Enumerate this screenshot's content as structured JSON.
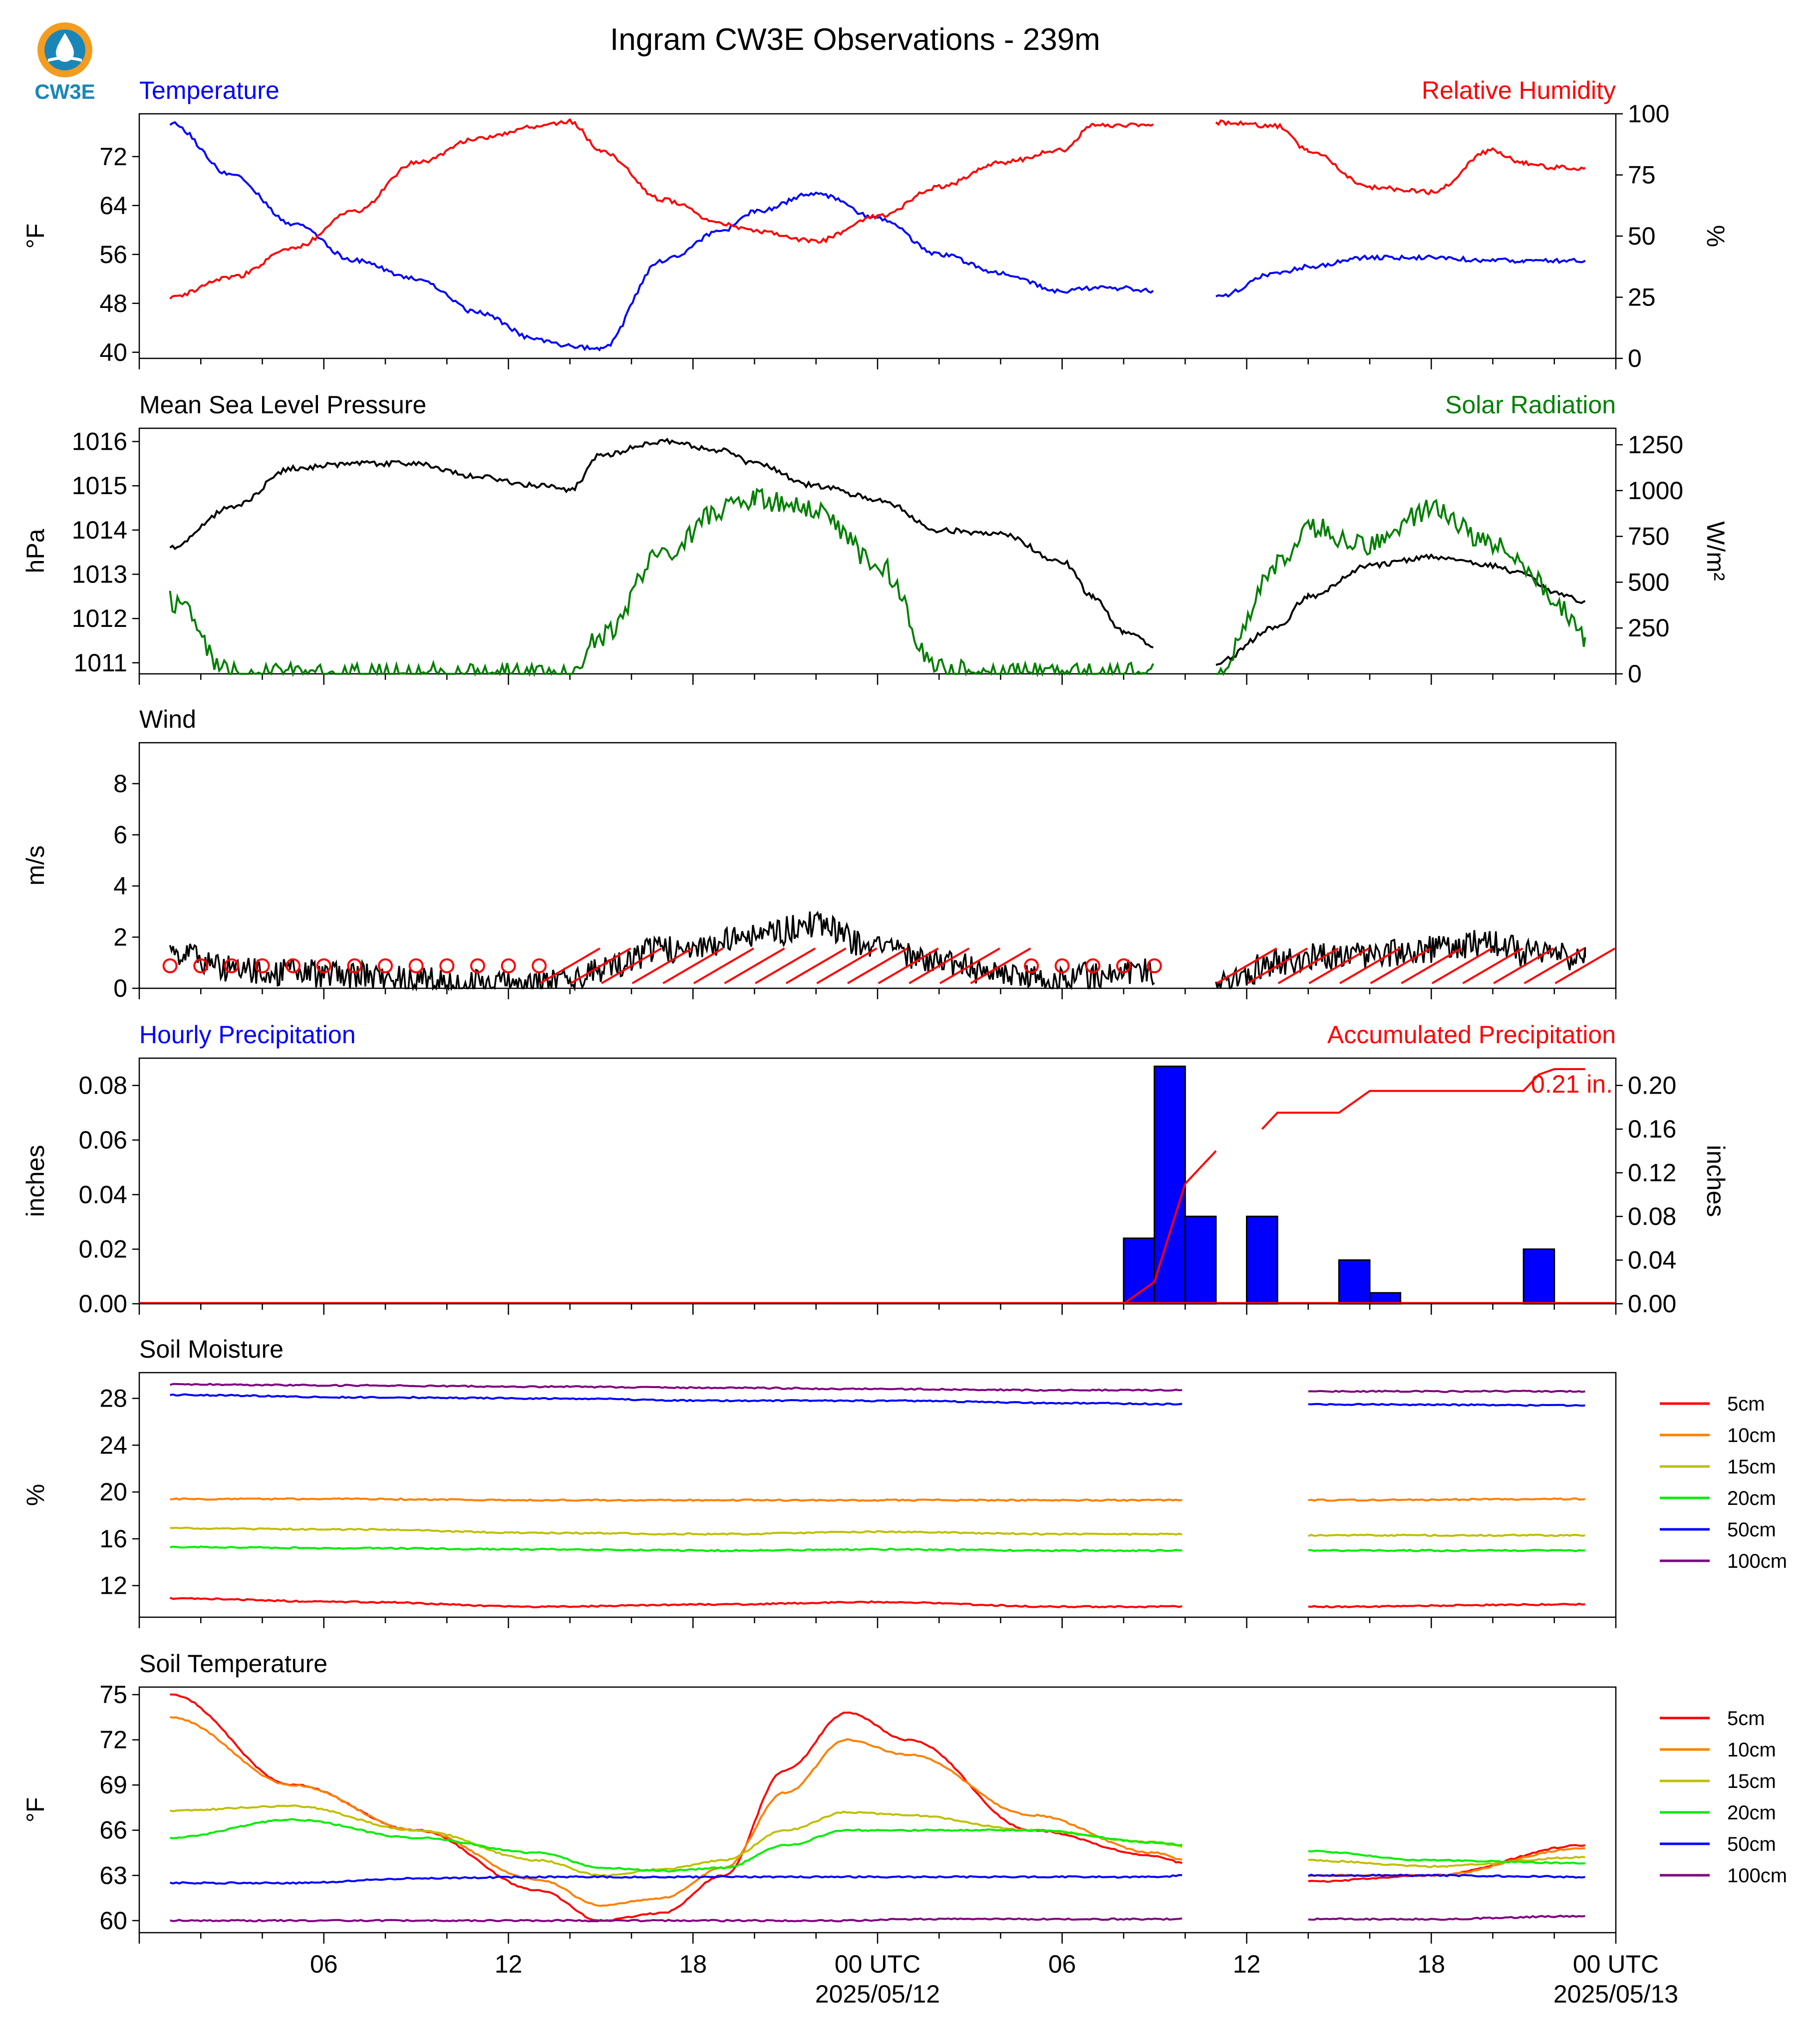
{
  "title": "Ingram CW3E Observations - 239m",
  "logo_text": "CW3E",
  "colors": {
    "temperature": "#0000ff",
    "humidity": "#ff0000",
    "pressure": "#000000",
    "solar": "#007f00",
    "wind": "#000000",
    "barb": "#ff0000",
    "precip_bar": "#0000ff",
    "accum": "#ff0000",
    "logo_ring": "#f39c1f",
    "logo_inner": "#1a86b8"
  },
  "time_axis": {
    "ticks": [
      {
        "label": "06",
        "sub": ""
      },
      {
        "label": "12",
        "sub": ""
      },
      {
        "label": "18",
        "sub": ""
      },
      {
        "label": "00 UTC",
        "sub": "2025/05/12"
      },
      {
        "label": "06",
        "sub": ""
      },
      {
        "label": "12",
        "sub": ""
      },
      {
        "label": "18",
        "sub": ""
      },
      {
        "label": "00 UTC",
        "sub": "2025/05/13"
      }
    ]
  },
  "soil_legend": [
    "5cm",
    "10cm",
    "15cm",
    "20cm",
    "50cm",
    "100cm"
  ],
  "soil_colors": [
    "#ff0000",
    "#ff7f00",
    "#bfbf00",
    "#00ee00",
    "#0000ff",
    "#800080"
  ],
  "chart_data": [
    {
      "type": "line",
      "left_label": "Temperature",
      "right_label": "Relative Humidity",
      "ylabel": "°F",
      "ylabel_right": "%",
      "ylim": [
        39,
        79
      ],
      "yticks": [
        40,
        48,
        56,
        64,
        72
      ],
      "ylim_right": [
        0,
        100
      ],
      "yticks_right": [
        0,
        25,
        50,
        75,
        100
      ],
      "x": [
        1,
        3,
        5,
        7,
        9,
        11,
        13,
        14,
        15,
        17,
        19,
        20,
        22,
        24,
        26,
        28,
        30,
        31,
        32,
        33,
        34,
        35,
        37,
        38,
        40,
        42,
        44,
        45,
        46,
        47
      ],
      "series": [
        {
          "axis": "left",
          "color": "#0000ff",
          "values": [
            77.5,
            69,
            61,
            55,
            52,
            46.5,
            42,
            41,
            40.5,
            55,
            60,
            63,
            66,
            62,
            56,
            53,
            50,
            50.5,
            50.5,
            50,
            null,
            49,
            53,
            54,
            55.5,
            55.5,
            55,
            55,
            55,
            55
          ]
        },
        {
          "axis": "right",
          "color": "#ff0000",
          "values": [
            25,
            33,
            45,
            60,
            80,
            90,
            95,
            97,
            85,
            65,
            55,
            52,
            48,
            58,
            70,
            80,
            85,
            95,
            95.5,
            96,
            null,
            96.5,
            95,
            85,
            70,
            68,
            85,
            80,
            78,
            78
          ]
        }
      ]
    },
    {
      "type": "line",
      "left_label": "Mean Sea Level Pressure",
      "right_label": "Solar Radiation",
      "ylabel": "hPa",
      "ylabel_right": "W/m²",
      "ylim": [
        1010.75,
        1016.3
      ],
      "yticks": [
        1011,
        1012,
        1013,
        1014,
        1015,
        1016
      ],
      "ylim_right": [
        0,
        1340
      ],
      "yticks_right": [
        0,
        250,
        500,
        750,
        1000,
        1250
      ],
      "x": [
        1,
        3,
        5,
        7,
        9,
        11,
        13,
        14,
        15,
        17,
        19,
        20,
        22,
        24,
        26,
        28,
        30,
        31,
        32,
        33,
        34,
        35,
        37,
        38,
        40,
        42,
        44,
        45,
        46,
        47
      ],
      "series": [
        {
          "axis": "left",
          "color": "#000000",
          "values": [
            1013.6,
            1014.5,
            1015.4,
            1015.5,
            1015.5,
            1015.2,
            1015,
            1014.9,
            1015.7,
            1016,
            1015.8,
            1015.5,
            1015,
            1014.7,
            1014,
            1013.9,
            1013.3,
            1012.5,
            1011.7,
            1011.4,
            null,
            1011,
            1011.8,
            1012.5,
            1013.2,
            1013.4,
            1013.2,
            1013,
            1012.6,
            1012.4
          ]
        },
        {
          "axis": "right",
          "color": "#007f00",
          "values": [
            400,
            10,
            0,
            0,
            0,
            0,
            0,
            20,
            200,
            650,
            900,
            950,
            900,
            600,
            20,
            0,
            0,
            0,
            0,
            0,
            null,
            0,
            600,
            800,
            700,
            900,
            700,
            600,
            400,
            200
          ]
        }
      ]
    },
    {
      "type": "line",
      "left_label": "Wind",
      "ylabel": "m/s",
      "ylim": [
        0,
        9.6
      ],
      "yticks": [
        0,
        2,
        4,
        6,
        8
      ],
      "x": [
        1,
        3,
        5,
        7,
        9,
        11,
        13,
        14,
        15,
        17,
        19,
        20,
        22,
        24,
        26,
        28,
        30,
        31,
        32,
        33,
        34,
        35,
        37,
        38,
        40,
        42,
        44,
        45,
        46,
        47
      ],
      "series": [
        {
          "axis": "left",
          "color": "#000000",
          "values": [
            1.5,
            0.8,
            0.6,
            0.5,
            0.3,
            0.2,
            0.1,
            0.3,
            0.8,
            1.5,
            1.8,
            2,
            2.5,
            1.5,
            1,
            0.5,
            0.3,
            0.5,
            0.7,
            0.6,
            null,
            0.1,
            1,
            1.2,
            1.3,
            1.5,
            1.8,
            1.4,
            1.3,
            1.2
          ]
        }
      ]
    },
    {
      "type": "bar",
      "left_label": "Hourly Precipitation",
      "right_label": "Accumulated Precipitation",
      "ylabel": "inches",
      "ylabel_right": "inches",
      "ylim": [
        0,
        0.09
      ],
      "yticks": [
        0.0,
        0.02,
        0.04,
        0.06,
        0.08
      ],
      "ylim_right": [
        0,
        0.225
      ],
      "yticks_right": [
        0.0,
        0.04,
        0.08,
        0.12,
        0.16,
        0.2
      ],
      "bars": [
        {
          "x": 32.5,
          "value": 0.024
        },
        {
          "x": 33.5,
          "value": 0.087
        },
        {
          "x": 34.5,
          "value": 0.032
        },
        {
          "x": 36.5,
          "value": 0.032
        },
        {
          "x": 39.5,
          "value": 0.016
        },
        {
          "x": 40.5,
          "value": 0.004
        },
        {
          "x": 45.5,
          "value": 0.02
        }
      ],
      "accumulated": {
        "x": [
          32,
          33,
          34,
          35,
          36,
          36.5,
          37,
          38,
          39,
          39.5,
          40,
          41,
          42,
          43,
          44,
          45,
          45.5,
          46,
          47
        ],
        "values": [
          0,
          0.02,
          0.11,
          0.14,
          null,
          0.16,
          0.175,
          0.175,
          0.175,
          0.185,
          0.195,
          0.195,
          0.195,
          0.195,
          0.195,
          0.195,
          0.21,
          0.215,
          0.215
        ]
      },
      "annotation": "0.21 in."
    },
    {
      "type": "line",
      "left_label": "Soil Moisture",
      "ylabel": "%",
      "ylim": [
        9.3,
        30.2
      ],
      "yticks": [
        12,
        16,
        20,
        24,
        28
      ],
      "x": [
        1,
        7,
        13,
        19,
        24,
        30,
        34,
        35,
        36,
        37,
        38,
        47
      ],
      "series": [
        {
          "name": "5cm",
          "values": [
            10.9,
            10.6,
            10.2,
            10.4,
            10.6,
            10.2,
            10.2,
            null,
            10.2,
            null,
            10.2,
            10.4
          ]
        },
        {
          "name": "10cm",
          "values": [
            19.4,
            19.4,
            19.3,
            19.3,
            19.3,
            19.3,
            19.3,
            null,
            19.3,
            null,
            19.3,
            19.4
          ]
        },
        {
          "name": "15cm",
          "values": [
            16.9,
            16.8,
            16.5,
            16.4,
            16.6,
            16.4,
            16.4,
            null,
            16.4,
            null,
            16.3,
            16.3
          ]
        },
        {
          "name": "20cm",
          "values": [
            15.3,
            15.2,
            15.1,
            15.0,
            15.1,
            15.0,
            15.0,
            null,
            15.0,
            null,
            15.0,
            15.0
          ]
        },
        {
          "name": "50cm",
          "values": [
            28.3,
            28.1,
            28.0,
            27.8,
            27.8,
            27.6,
            27.5,
            null,
            27.5,
            null,
            27.5,
            27.4
          ]
        },
        {
          "name": "100cm",
          "values": [
            29.2,
            29.1,
            29.0,
            28.9,
            28.8,
            28.7,
            28.7,
            null,
            28.6,
            null,
            28.6,
            28.6
          ]
        }
      ]
    },
    {
      "type": "line",
      "left_label": "Soil Temperature",
      "ylabel": "°F",
      "ylim": [
        59.2,
        75.5
      ],
      "yticks": [
        60,
        63,
        66,
        69,
        72,
        75
      ],
      "x": [
        1,
        5,
        9,
        13,
        15,
        17,
        19,
        21,
        23,
        25,
        29,
        33,
        34,
        35,
        36,
        37,
        38,
        42,
        47
      ],
      "series": [
        {
          "name": "5cm",
          "values": [
            75,
            69,
            66,
            62,
            60,
            60.5,
            63,
            70,
            73.8,
            72,
            66,
            64.3,
            63.8,
            null,
            63.5,
            null,
            62.6,
            63,
            65
          ]
        },
        {
          "name": "10cm",
          "values": [
            73.5,
            69,
            66,
            62.7,
            61,
            61.5,
            63.5,
            68.5,
            72,
            71,
            67,
            64.5,
            64,
            null,
            63.5,
            null,
            63,
            63,
            64.8
          ]
        },
        {
          "name": "15cm",
          "values": [
            67.3,
            67.6,
            66,
            64,
            63,
            63.4,
            64,
            66,
            67.2,
            67,
            66,
            65.2,
            64.9,
            null,
            64.5,
            null,
            64,
            63.6,
            64.2
          ]
        },
        {
          "name": "20cm",
          "values": [
            65.5,
            66.7,
            65.5,
            64.5,
            63.5,
            63.3,
            63.5,
            65,
            66,
            66,
            66,
            65.2,
            65,
            null,
            64.8,
            null,
            64.6,
            64,
            63.8
          ]
        },
        {
          "name": "50cm",
          "values": [
            62.5,
            62.5,
            62.8,
            62.9,
            62.9,
            62.9,
            62.9,
            62.9,
            62.9,
            62.9,
            62.9,
            62.9,
            63,
            null,
            63,
            null,
            63,
            63,
            62.9
          ]
        },
        {
          "name": "100cm",
          "values": [
            60,
            60,
            60,
            60,
            60,
            60,
            60,
            60,
            60,
            60.1,
            60.1,
            60.1,
            60.1,
            null,
            60.1,
            null,
            60.1,
            60.1,
            60.3
          ]
        }
      ]
    }
  ]
}
